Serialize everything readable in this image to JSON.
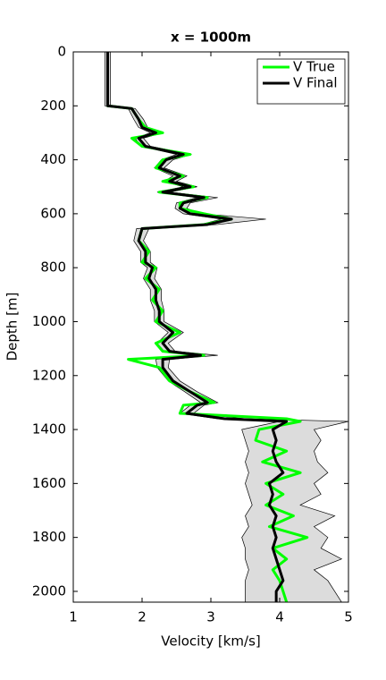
{
  "chart_data": {
    "type": "line",
    "title": "x = 1000m",
    "x_label": "Velocity [km/s]",
    "y_label": "Depth [m]",
    "y": [
      0,
      100,
      200,
      210,
      250,
      280,
      300,
      320,
      350,
      380,
      400,
      430,
      460,
      480,
      500,
      520,
      540,
      560,
      580,
      600,
      620,
      640,
      655,
      700,
      740,
      780,
      800,
      840,
      880,
      920,
      960,
      1000,
      1040,
      1080,
      1110,
      1125,
      1140,
      1170,
      1220,
      1260,
      1300,
      1310,
      1340,
      1360,
      1370,
      1400,
      1440,
      1480,
      1520,
      1560,
      1600,
      1640,
      1680,
      1720,
      1760,
      1800,
      1840,
      1880,
      1920,
      1960,
      2000,
      2040
    ],
    "series": [
      {
        "name": "V True",
        "color": "#00ff00",
        "values": [
          1.5,
          1.5,
          1.5,
          1.85,
          1.95,
          2.05,
          2.3,
          1.85,
          2.0,
          2.7,
          2.3,
          2.2,
          2.6,
          2.3,
          2.75,
          2.25,
          2.95,
          2.55,
          2.55,
          2.9,
          3.3,
          2.9,
          2.0,
          1.95,
          2.1,
          2.0,
          2.2,
          2.05,
          2.25,
          2.15,
          2.3,
          2.2,
          2.55,
          2.2,
          2.3,
          2.9,
          1.8,
          2.25,
          2.4,
          2.7,
          3.05,
          2.6,
          2.55,
          4.1,
          4.3,
          3.7,
          3.65,
          4.1,
          3.75,
          4.3,
          3.8,
          4.05,
          3.8,
          4.2,
          3.85,
          4.4,
          3.9,
          4.1,
          3.9,
          4.0,
          4.05,
          4.1
        ]
      },
      {
        "name": "V Final",
        "color": "#000000",
        "values": [
          1.5,
          1.5,
          1.5,
          1.85,
          1.95,
          2.0,
          2.2,
          1.95,
          2.05,
          2.6,
          2.35,
          2.25,
          2.55,
          2.4,
          2.7,
          2.3,
          2.9,
          2.6,
          2.55,
          2.7,
          3.3,
          2.95,
          2.0,
          1.95,
          2.05,
          2.05,
          2.15,
          2.1,
          2.2,
          2.2,
          2.25,
          2.25,
          2.45,
          2.3,
          2.4,
          2.85,
          2.3,
          2.3,
          2.45,
          2.7,
          2.95,
          2.8,
          2.65,
          3.2,
          4.1,
          3.9,
          3.95,
          3.9,
          3.95,
          4.05,
          3.85,
          3.9,
          3.85,
          3.95,
          3.9,
          3.95,
          3.9,
          3.95,
          4.0,
          4.05,
          3.95,
          3.95
        ]
      }
    ],
    "band": {
      "color": "#dcdcdc",
      "lower": [
        1.46,
        1.46,
        1.46,
        1.8,
        1.88,
        1.95,
        2.12,
        1.9,
        1.98,
        2.5,
        2.28,
        2.18,
        2.45,
        2.32,
        2.6,
        2.22,
        2.8,
        2.5,
        2.48,
        2.6,
        3.15,
        2.85,
        1.92,
        1.88,
        1.98,
        1.98,
        2.08,
        2.02,
        2.12,
        2.12,
        2.18,
        2.18,
        2.38,
        2.22,
        2.32,
        2.75,
        2.2,
        2.22,
        2.38,
        2.62,
        2.85,
        2.7,
        2.55,
        3.1,
        4.0,
        3.45,
        3.5,
        3.55,
        3.5,
        3.55,
        3.5,
        3.55,
        3.6,
        3.5,
        3.55,
        3.45,
        3.5,
        3.5,
        3.55,
        3.5,
        3.5,
        3.5
      ],
      "upper": [
        1.54,
        1.54,
        1.54,
        1.9,
        2.02,
        2.08,
        2.3,
        2.02,
        2.12,
        2.72,
        2.45,
        2.32,
        2.65,
        2.5,
        2.8,
        2.4,
        3.1,
        2.7,
        2.65,
        2.85,
        3.8,
        3.1,
        2.1,
        2.02,
        2.12,
        2.12,
        2.22,
        2.18,
        2.28,
        2.28,
        2.32,
        2.32,
        2.6,
        2.38,
        2.48,
        3.1,
        2.4,
        2.38,
        2.55,
        2.8,
        3.1,
        2.9,
        2.75,
        3.5,
        5.0,
        4.5,
        4.6,
        4.5,
        4.55,
        4.7,
        4.5,
        4.6,
        4.3,
        4.8,
        4.5,
        4.7,
        4.6,
        4.9,
        4.5,
        4.7,
        4.8,
        4.9
      ]
    },
    "xlim": [
      1,
      5
    ],
    "xticks": [
      1,
      2,
      3,
      4,
      5
    ],
    "ylim": [
      0,
      2040
    ],
    "yticks": [
      0,
      200,
      400,
      600,
      800,
      1000,
      1200,
      1400,
      1600,
      1800,
      2000
    ],
    "y_inverted": true,
    "legend": "northeast"
  }
}
